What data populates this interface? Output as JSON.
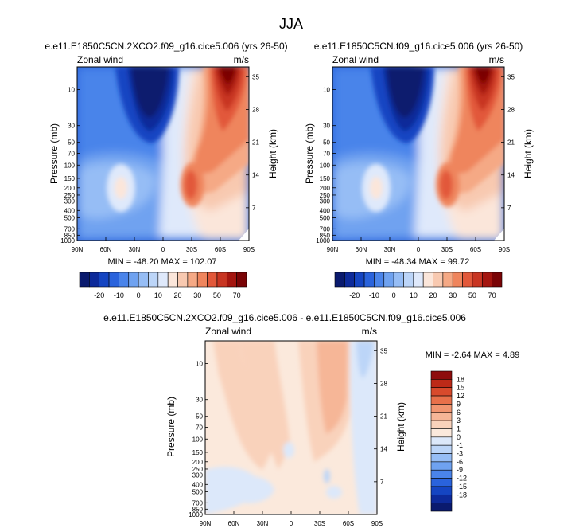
{
  "main_title": "JJA",
  "palettes": {
    "top": [
      "#0a1a6e",
      "#0d2a9a",
      "#1545c2",
      "#2a63dc",
      "#4a84ea",
      "#6fa2f0",
      "#96bdf5",
      "#bcd5f8",
      "#dfe9fb",
      "#fbe6da",
      "#f8c9b0",
      "#f5a985",
      "#ef855d",
      "#e2583a",
      "#c83522",
      "#a4150f",
      "#7a0406"
    ],
    "diff": [
      "#0a1a6e",
      "#0d2a9a",
      "#1545c2",
      "#2a63dc",
      "#4a84ea",
      "#6fa2f0",
      "#96bdf5",
      "#bcd5f8",
      "#dce8fa",
      "#fbe9dc",
      "#f9d2bb",
      "#f6b697",
      "#f19570",
      "#e8704a",
      "#d84a2c",
      "#bd2a18",
      "#8e0c0c"
    ]
  },
  "chart_data": [
    {
      "id": "panel_left",
      "type": "contour",
      "title": "e.e11.E1850C5CN.2XCO2.f09_g16.cice5.006 (yrs 26-50)",
      "left_label": "Zonal wind",
      "right_label": "m/s",
      "ylabel": "Pressure (mb)",
      "y2label": "Height (km)",
      "xticks": [
        "90N",
        "60N",
        "30N",
        "0",
        "30S",
        "60S",
        "90S"
      ],
      "pressure_ticks": [
        "10",
        "30",
        "50",
        "70",
        "100",
        "150",
        "200",
        "250",
        "300",
        "400",
        "500",
        "700",
        "850",
        "1000"
      ],
      "pressure_values": [
        10,
        30,
        50,
        70,
        100,
        150,
        200,
        250,
        300,
        400,
        500,
        700,
        850,
        1000
      ],
      "height_ticks": [
        "35",
        "28",
        "21",
        "14",
        "7"
      ],
      "height_values": [
        35,
        28,
        21,
        14,
        7
      ],
      "stats": "MIN = -48.20   MAX = 102.07",
      "min": -48.2,
      "max": 102.07,
      "colorbar_labels": [
        "-20",
        "-10",
        "0",
        "10",
        "20",
        "30",
        "50",
        "70"
      ],
      "colorbar_levels": [
        -25,
        -20,
        -15,
        -10,
        -5,
        0,
        5,
        10,
        15,
        20,
        25,
        30,
        40,
        50,
        60,
        70
      ],
      "features": [
        {
          "name": "easterly_stratospheric_jet",
          "lat": -10,
          "p": 15,
          "value": -45
        },
        {
          "name": "westerly_polar_night_jet",
          "lat": -58,
          "p": 15,
          "value": 95
        },
        {
          "name": "southern_subtropical_jet",
          "lat": -30,
          "p": 200,
          "value": 48
        },
        {
          "name": "northern_subtropical_jet",
          "lat": 45,
          "p": 200,
          "value": 22
        }
      ]
    },
    {
      "id": "panel_right",
      "type": "contour",
      "title": "e.e11.E1850C5CN.f09_g16.cice5.006 (yrs 26-50)",
      "left_label": "Zonal wind",
      "right_label": "m/s",
      "ylabel": "Pressure (mb)",
      "y2label": "Height (km)",
      "xticks": [
        "90N",
        "60N",
        "30N",
        "0",
        "30S",
        "60S",
        "90S"
      ],
      "pressure_ticks": [
        "10",
        "30",
        "50",
        "70",
        "100",
        "150",
        "200",
        "250",
        "300",
        "400",
        "500",
        "700",
        "850",
        "1000"
      ],
      "pressure_values": [
        10,
        30,
        50,
        70,
        100,
        150,
        200,
        250,
        300,
        400,
        500,
        700,
        850,
        1000
      ],
      "height_ticks": [
        "35",
        "28",
        "21",
        "14",
        "7"
      ],
      "height_values": [
        35,
        28,
        21,
        14,
        7
      ],
      "stats": "MIN = -48.34   MAX = 99.72",
      "min": -48.34,
      "max": 99.72,
      "colorbar_labels": [
        "-20",
        "-10",
        "0",
        "10",
        "20",
        "30",
        "50",
        "70"
      ],
      "colorbar_levels": [
        -25,
        -20,
        -15,
        -10,
        -5,
        0,
        5,
        10,
        15,
        20,
        25,
        30,
        40,
        50,
        60,
        70
      ],
      "features": [
        {
          "name": "easterly_stratospheric_jet",
          "lat": -10,
          "p": 15,
          "value": -45
        },
        {
          "name": "westerly_polar_night_jet",
          "lat": -58,
          "p": 15,
          "value": 93
        },
        {
          "name": "southern_subtropical_jet",
          "lat": -30,
          "p": 200,
          "value": 46
        },
        {
          "name": "northern_subtropical_jet",
          "lat": 45,
          "p": 200,
          "value": 22
        }
      ]
    },
    {
      "id": "panel_diff",
      "type": "contour",
      "title": "e.e11.E1850C5CN.2XCO2.f09_g16.cice5.006 - e.e11.E1850C5CN.f09_g16.cice5.006",
      "left_label": "Zonal wind",
      "right_label": "m/s",
      "ylabel": "Pressure (mb)",
      "y2label": "Height (km)",
      "xticks": [
        "90N",
        "60N",
        "30N",
        "0",
        "30S",
        "60S",
        "90S"
      ],
      "pressure_ticks": [
        "10",
        "30",
        "50",
        "70",
        "100",
        "150",
        "200",
        "250",
        "300",
        "400",
        "500",
        "700",
        "850",
        "1000"
      ],
      "pressure_values": [
        10,
        30,
        50,
        70,
        100,
        150,
        200,
        250,
        300,
        400,
        500,
        700,
        850,
        1000
      ],
      "height_ticks": [
        "35",
        "28",
        "21",
        "14",
        "7"
      ],
      "height_values": [
        35,
        28,
        21,
        14,
        7
      ],
      "stats": "MIN = -2.64   MAX =   4.89",
      "min": -2.64,
      "max": 4.89,
      "colorbar_labels": [
        "18",
        "15",
        "12",
        "9",
        "6",
        "3",
        "1",
        "0",
        "-1",
        "-3",
        "-6",
        "-9",
        "-12",
        "-15",
        "-18"
      ],
      "colorbar_levels": [
        -18,
        -15,
        -12,
        -9,
        -6,
        -3,
        -1,
        0,
        1,
        3,
        6,
        9,
        12,
        15,
        18
      ],
      "features": [
        {
          "name": "positive_band_nh",
          "lat": 40,
          "p": 30,
          "value": 2
        },
        {
          "name": "positive_max_southern_midlat",
          "lat": -52,
          "p": 15,
          "value": 4.9
        },
        {
          "name": "negative_southern_polar",
          "lat": -80,
          "p": 30,
          "value": -2.6
        },
        {
          "name": "negative_lower_troposphere",
          "lat": 60,
          "p": 500,
          "value": -1
        }
      ]
    }
  ]
}
